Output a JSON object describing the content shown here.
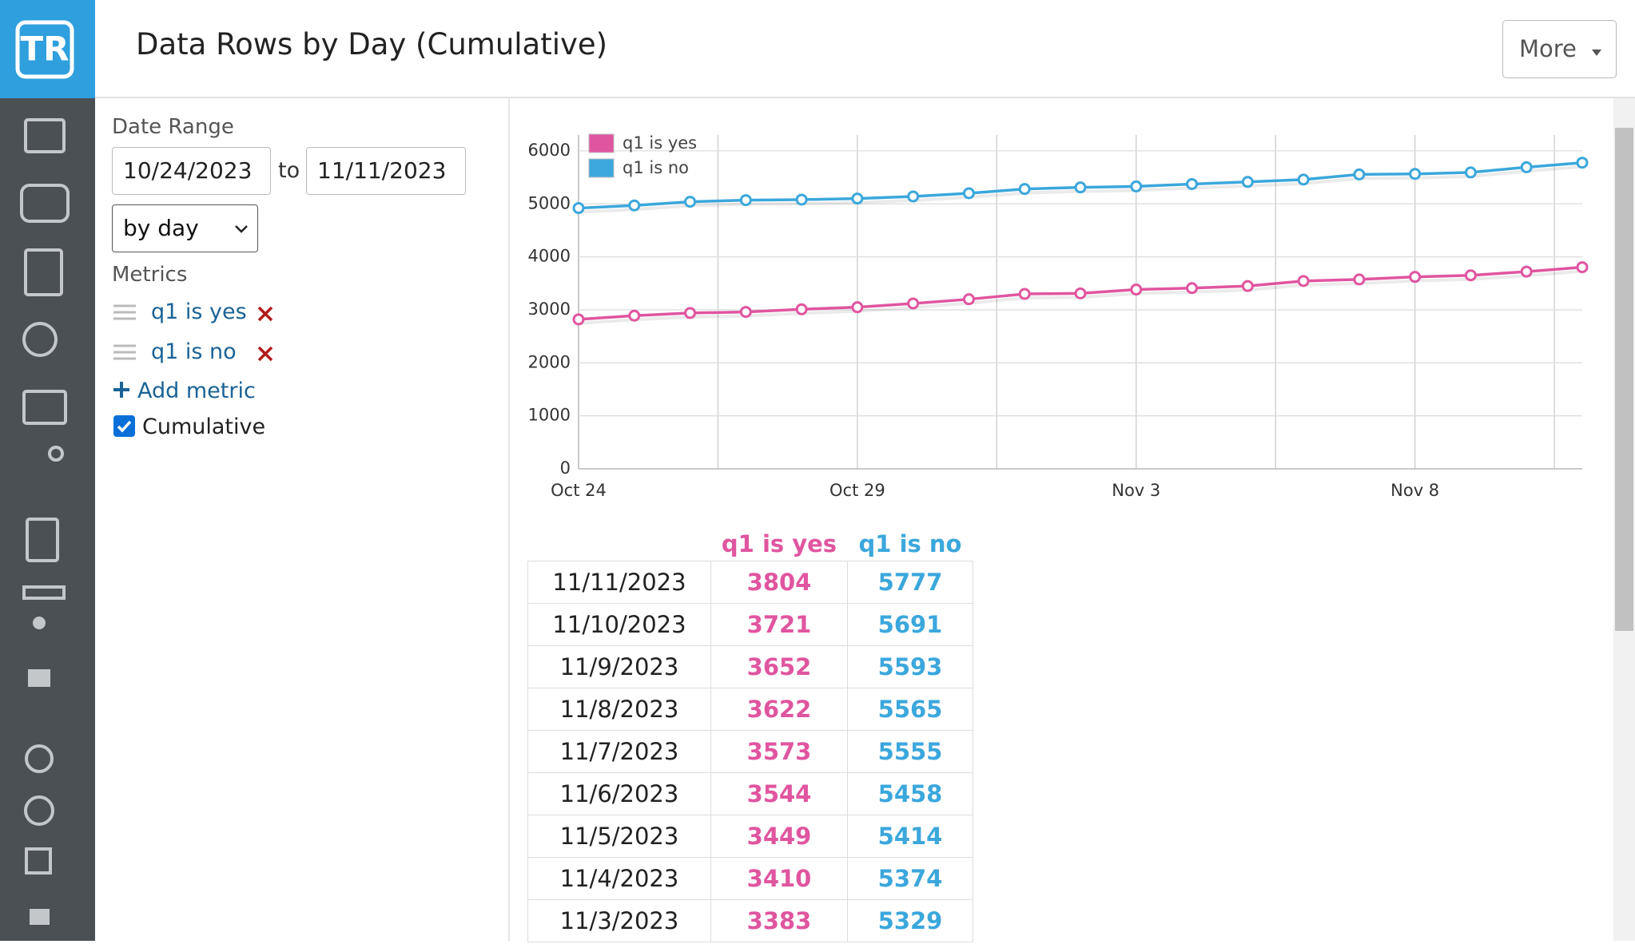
{
  "header": {
    "logo": "TR",
    "title": "Data Rows by Day (Cumulative)",
    "more_button": "More"
  },
  "controls": {
    "date_range_label": "Date Range",
    "start_date": "10/24/2023",
    "to": "to",
    "end_date": "11/11/2023",
    "interval": "by day",
    "metrics_label": "Metrics",
    "metrics": [
      "q1 is yes",
      "q1 is no"
    ],
    "add_metric": "Add metric",
    "cumulative": "Cumulative"
  },
  "chart_data": {
    "type": "line",
    "categories": [
      "Oct 24",
      null,
      null,
      null,
      null,
      "Oct 29",
      null,
      null,
      null,
      null,
      "Nov 3",
      null,
      null,
      null,
      null,
      "Nov 8",
      null,
      null,
      null
    ],
    "series": [
      {
        "name": "q1 is yes",
        "color": "#e0559f",
        "values": [
          2820,
          2890,
          2940,
          2960,
          3010,
          3050,
          3120,
          3200,
          3300,
          3310,
          3383,
          3410,
          3449,
          3544,
          3573,
          3622,
          3652,
          3721,
          3804
        ]
      },
      {
        "name": "q1 is no",
        "color": "#3ba7dc",
        "values": [
          4920,
          4970,
          5040,
          5070,
          5080,
          5100,
          5140,
          5200,
          5280,
          5310,
          5329,
          5374,
          5414,
          5458,
          5555,
          5565,
          5593,
          5691,
          5777
        ]
      }
    ],
    "ylim": [
      0,
      6300
    ],
    "yticks": [
      0,
      1000,
      2000,
      3000,
      4000,
      5000,
      6000
    ],
    "grid": true,
    "legend": "top-left"
  },
  "table": {
    "columns": [
      "q1 is yes",
      "q1 is no"
    ],
    "rows": [
      [
        "11/11/2023",
        3804,
        5777
      ],
      [
        "11/10/2023",
        3721,
        5691
      ],
      [
        "11/9/2023",
        3652,
        5593
      ],
      [
        "11/8/2023",
        3622,
        5565
      ],
      [
        "11/7/2023",
        3573,
        5555
      ],
      [
        "11/6/2023",
        3544,
        5458
      ],
      [
        "11/5/2023",
        3449,
        5414
      ],
      [
        "11/4/2023",
        3410,
        5374
      ],
      [
        "11/3/2023",
        3383,
        5329
      ]
    ]
  }
}
